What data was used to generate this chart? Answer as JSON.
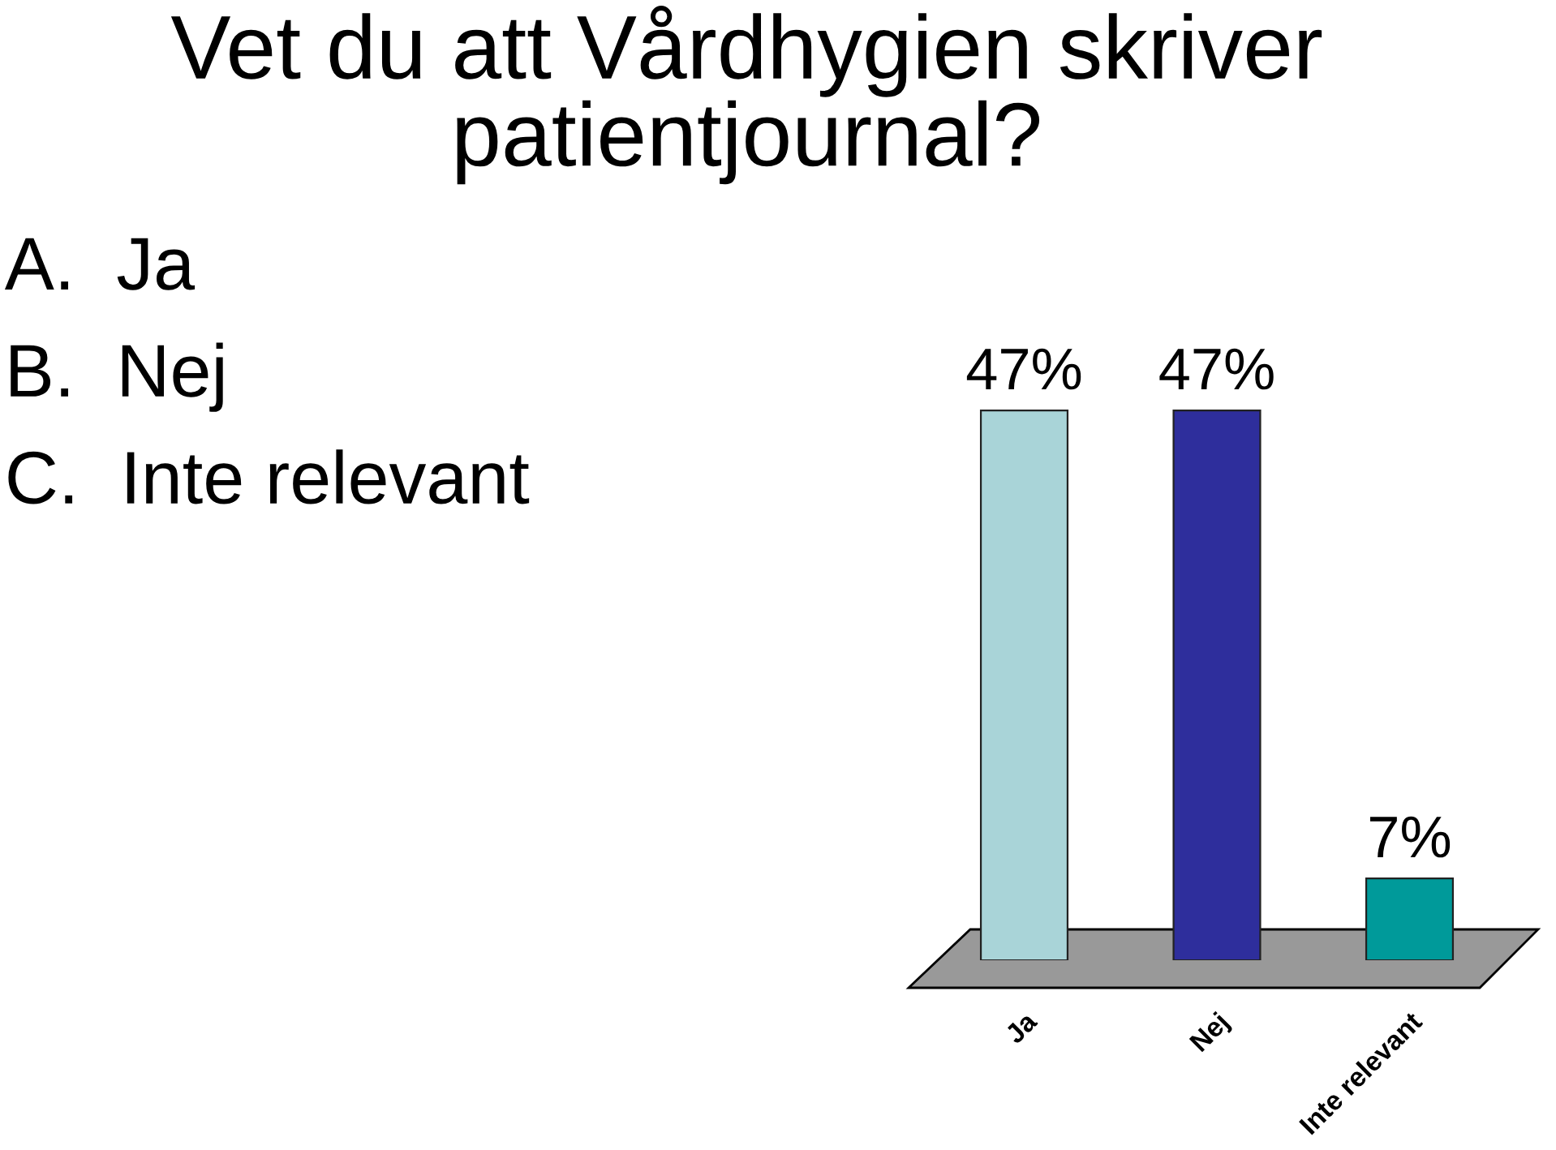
{
  "chart_data": {
    "type": "bar",
    "title": "Vet du att Vårdhygien skriver\npatientjournal?",
    "categories": [
      "Ja",
      "Nej",
      "Inte relevant"
    ],
    "values": [
      47,
      47,
      7
    ],
    "colors": [
      "#a9d4d8",
      "#2e2e9c",
      "#009a9a"
    ],
    "value_labels": [
      "47%",
      "47%",
      "7%"
    ],
    "annotations": [
      "A.  Ja",
      "B.  Nej",
      "C.  Inte relevant"
    ],
    "grid": false,
    "legend": false
  }
}
